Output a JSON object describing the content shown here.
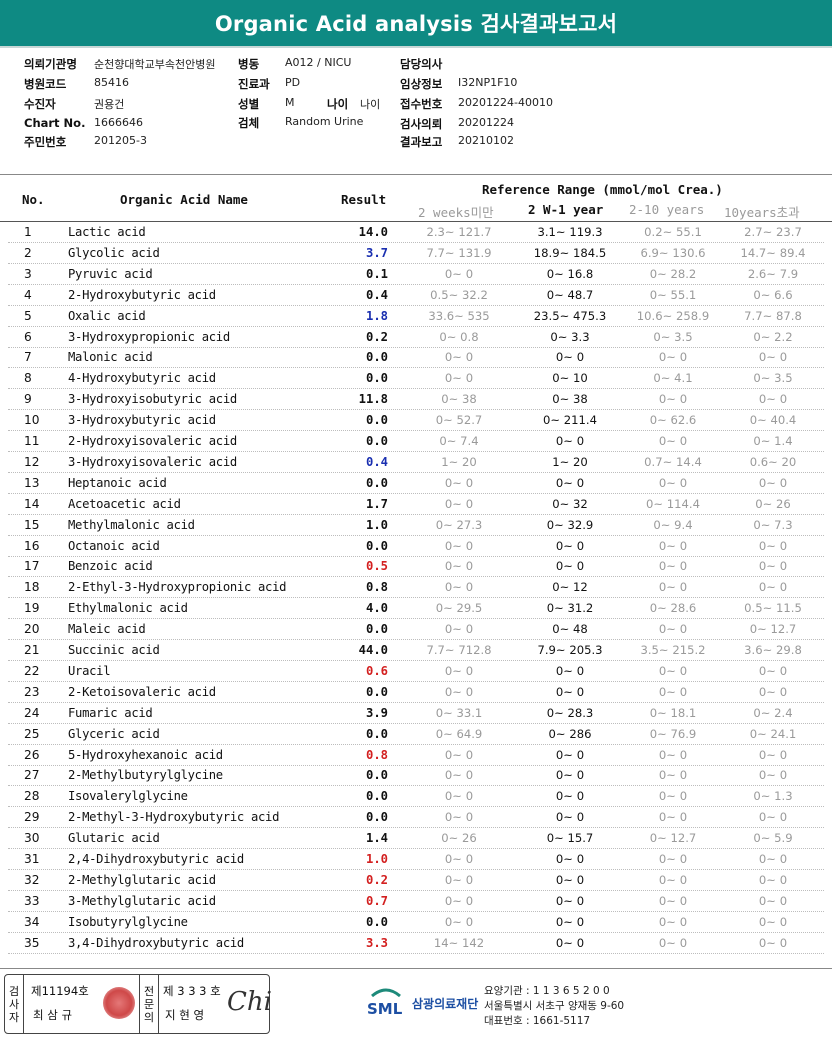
{
  "title": "Organic Acid analysis 검사결과보고서",
  "info": {
    "hospital_label": "의뢰기관명",
    "hospital": "순천향대학교부속천안병원",
    "ward_label": "병동",
    "ward": "A012 / NICU",
    "doctor_label": "담당의사",
    "doctor": "",
    "code_label": "병원코드",
    "code": "85416",
    "dept_label": "진료과",
    "dept": "PD",
    "clinical_label": "임상정보",
    "clinical": "I32NP1F10",
    "patient_label": "수진자",
    "patient": "권용건",
    "sex_label": "성별",
    "sex": "M",
    "age_label": "나이",
    "age": "나이",
    "receipt_label": "접수번호",
    "receipt": "20201224-40010",
    "chart_label": "Chart No.",
    "chart": "1666646",
    "specimen_label": "검체",
    "specimen": "Random Urine",
    "request_label": "검사의뢰",
    "request": "20201224",
    "id_label": "주민번호",
    "id": "201205-3",
    "report_label": "결과보고",
    "report": "20210102"
  },
  "table": {
    "col_no": "No.",
    "col_name": "Organic Acid Name",
    "col_result": "Result",
    "ref_title": "Reference Range (mmol/mol Crea.)",
    "ref_cols": [
      "2 weeks미만",
      "2 W-1 year",
      "2-10 years",
      "10years초과"
    ],
    "rows": [
      {
        "no": "1",
        "name": "Lactic acid",
        "result": "14.0",
        "color": "#111",
        "r": [
          "2.3~ 121.7",
          "3.1~ 119.3",
          "0.2~ 55.1",
          "2.7~ 23.7"
        ]
      },
      {
        "no": "2",
        "name": "Glycolic acid",
        "result": "3.7",
        "color": "#1a2fb0",
        "r": [
          "7.7~ 131.9",
          "18.9~ 184.5",
          "6.9~ 130.6",
          "14.7~ 89.4"
        ]
      },
      {
        "no": "3",
        "name": "Pyruvic acid",
        "result": "0.1",
        "color": "#111",
        "r": [
          "0~ 0",
          "0~ 16.8",
          "0~ 28.2",
          "2.6~ 7.9"
        ]
      },
      {
        "no": "4",
        "name": "2-Hydroxybutyric acid",
        "result": "0.4",
        "color": "#111",
        "r": [
          "0.5~ 32.2",
          "0~ 48.7",
          "0~ 55.1",
          "0~ 6.6"
        ]
      },
      {
        "no": "5",
        "name": "Oxalic acid",
        "result": "1.8",
        "color": "#1a2fb0",
        "r": [
          "33.6~ 535",
          "23.5~ 475.3",
          "10.6~ 258.9",
          "7.7~ 87.8"
        ]
      },
      {
        "no": "6",
        "name": "3-Hydroxypropionic acid",
        "result": "0.2",
        "color": "#111",
        "r": [
          "0~ 0.8",
          "0~ 3.3",
          "0~ 3.5",
          "0~ 2.2"
        ]
      },
      {
        "no": "7",
        "name": "Malonic acid",
        "result": "0.0",
        "color": "#111",
        "r": [
          "0~ 0",
          "0~ 0",
          "0~ 0",
          "0~ 0"
        ]
      },
      {
        "no": "8",
        "name": "4-Hydroxybutyric acid",
        "result": "0.0",
        "color": "#111",
        "r": [
          "0~ 0",
          "0~ 10",
          "0~ 4.1",
          "0~ 3.5"
        ]
      },
      {
        "no": "9",
        "name": "3-Hydroxyisobutyric acid",
        "result": "11.8",
        "color": "#111",
        "r": [
          "0~ 38",
          "0~ 38",
          "0~ 0",
          "0~ 0"
        ]
      },
      {
        "no": "10",
        "name": "3-Hydroxybutyric acid",
        "result": "0.0",
        "color": "#111",
        "r": [
          "0~ 52.7",
          "0~ 211.4",
          "0~ 62.6",
          "0~ 40.4"
        ]
      },
      {
        "no": "11",
        "name": "2-Hydroxyisovaleric acid",
        "result": "0.0",
        "color": "#111",
        "r": [
          "0~ 7.4",
          "0~ 0",
          "0~ 0",
          "0~ 1.4"
        ]
      },
      {
        "no": "12",
        "name": "3-Hydroxyisovaleric acid",
        "result": "0.4",
        "color": "#1a2fb0",
        "r": [
          "1~ 20",
          "1~ 20",
          "0.7~ 14.4",
          "0.6~ 20"
        ]
      },
      {
        "no": "13",
        "name": "Heptanoic acid",
        "result": "0.0",
        "color": "#111",
        "r": [
          "0~ 0",
          "0~ 0",
          "0~ 0",
          "0~ 0"
        ]
      },
      {
        "no": "14",
        "name": "Acetoacetic acid",
        "result": "1.7",
        "color": "#111",
        "r": [
          "0~ 0",
          "0~ 32",
          "0~ 114.4",
          "0~ 26"
        ]
      },
      {
        "no": "15",
        "name": "Methylmalonic acid",
        "result": "1.0",
        "color": "#111",
        "r": [
          "0~ 27.3",
          "0~ 32.9",
          "0~ 9.4",
          "0~ 7.3"
        ]
      },
      {
        "no": "16",
        "name": "Octanoic acid",
        "result": "0.0",
        "color": "#111",
        "r": [
          "0~ 0",
          "0~ 0",
          "0~ 0",
          "0~ 0"
        ]
      },
      {
        "no": "17",
        "name": "Benzoic acid",
        "result": "0.5",
        "color": "#d32020",
        "r": [
          "0~ 0",
          "0~ 0",
          "0~ 0",
          "0~ 0"
        ]
      },
      {
        "no": "18",
        "name": "2-Ethyl-3-Hydroxypropionic acid",
        "result": "0.8",
        "color": "#111",
        "r": [
          "0~ 0",
          "0~ 12",
          "0~ 0",
          "0~ 0"
        ]
      },
      {
        "no": "19",
        "name": "Ethylmalonic acid",
        "result": "4.0",
        "color": "#111",
        "r": [
          "0~ 29.5",
          "0~ 31.2",
          "0~ 28.6",
          "0.5~ 11.5"
        ]
      },
      {
        "no": "20",
        "name": "Maleic acid",
        "result": "0.0",
        "color": "#111",
        "r": [
          "0~ 0",
          "0~ 48",
          "0~ 0",
          "0~ 12.7"
        ]
      },
      {
        "no": "21",
        "name": "Succinic acid",
        "result": "44.0",
        "color": "#111",
        "r": [
          "7.7~ 712.8",
          "7.9~ 205.3",
          "3.5~ 215.2",
          "3.6~ 29.8"
        ]
      },
      {
        "no": "22",
        "name": "Uracil",
        "result": "0.6",
        "color": "#d32020",
        "r": [
          "0~ 0",
          "0~ 0",
          "0~ 0",
          "0~ 0"
        ]
      },
      {
        "no": "23",
        "name": "2-Ketoisovaleric acid",
        "result": "0.0",
        "color": "#111",
        "r": [
          "0~ 0",
          "0~ 0",
          "0~ 0",
          "0~ 0"
        ]
      },
      {
        "no": "24",
        "name": "Fumaric acid",
        "result": "3.9",
        "color": "#111",
        "r": [
          "0~ 33.1",
          "0~ 28.3",
          "0~ 18.1",
          "0~ 2.4"
        ]
      },
      {
        "no": "25",
        "name": "Glyceric acid",
        "result": "0.0",
        "color": "#111",
        "r": [
          "0~ 64.9",
          "0~ 286",
          "0~ 76.9",
          "0~ 24.1"
        ]
      },
      {
        "no": "26",
        "name": "5-Hydroxyhexanoic acid",
        "result": "0.8",
        "color": "#d32020",
        "r": [
          "0~ 0",
          "0~ 0",
          "0~ 0",
          "0~ 0"
        ]
      },
      {
        "no": "27",
        "name": "2-Methylbutyrylglycine",
        "result": "0.0",
        "color": "#111",
        "r": [
          "0~ 0",
          "0~ 0",
          "0~ 0",
          "0~ 0"
        ]
      },
      {
        "no": "28",
        "name": "Isovalerylglycine",
        "result": "0.0",
        "color": "#111",
        "r": [
          "0~ 0",
          "0~ 0",
          "0~ 0",
          "0~ 1.3"
        ]
      },
      {
        "no": "29",
        "name": "2-Methyl-3-Hydroxybutyric acid",
        "result": "0.0",
        "color": "#111",
        "r": [
          "0~ 0",
          "0~ 0",
          "0~ 0",
          "0~ 0"
        ]
      },
      {
        "no": "30",
        "name": "Glutaric acid",
        "result": "1.4",
        "color": "#111",
        "r": [
          "0~ 26",
          "0~ 15.7",
          "0~ 12.7",
          "0~ 5.9"
        ]
      },
      {
        "no": "31",
        "name": "2,4-Dihydroxybutyric acid",
        "result": "1.0",
        "color": "#d32020",
        "r": [
          "0~ 0",
          "0~ 0",
          "0~ 0",
          "0~ 0"
        ]
      },
      {
        "no": "32",
        "name": "2-Methylglutaric acid",
        "result": "0.2",
        "color": "#d32020",
        "r": [
          "0~ 0",
          "0~ 0",
          "0~ 0",
          "0~ 0"
        ]
      },
      {
        "no": "33",
        "name": "3-Methylglutaric acid",
        "result": "0.7",
        "color": "#d32020",
        "r": [
          "0~ 0",
          "0~ 0",
          "0~ 0",
          "0~ 0"
        ]
      },
      {
        "no": "34",
        "name": "Isobutyrylglycine",
        "result": "0.0",
        "color": "#111",
        "r": [
          "0~ 0",
          "0~ 0",
          "0~ 0",
          "0~ 0"
        ]
      },
      {
        "no": "35",
        "name": "3,4-Dihydroxybutyric acid",
        "result": "3.3",
        "color": "#d32020",
        "r": [
          "14~ 142",
          "0~ 0",
          "0~ 0",
          "0~ 0"
        ]
      }
    ]
  },
  "footer": {
    "tester_label": "검사자",
    "tester_no": "제11194호",
    "tester_name": "최 삼 규",
    "specialist_label": "전문의",
    "specialist_no": "제 3 3 3 호",
    "specialist_name": "지 현 영",
    "signature": "Chi",
    "brand_mark": "SML",
    "brand_name": "삼광의료재단",
    "org_line1": "요양기관 : 1 1 3 6 5 2 0 0",
    "org_line2": "서울특별시 서초구 양재동 9-60",
    "org_line3": "대표번호 : 1661-5117"
  }
}
